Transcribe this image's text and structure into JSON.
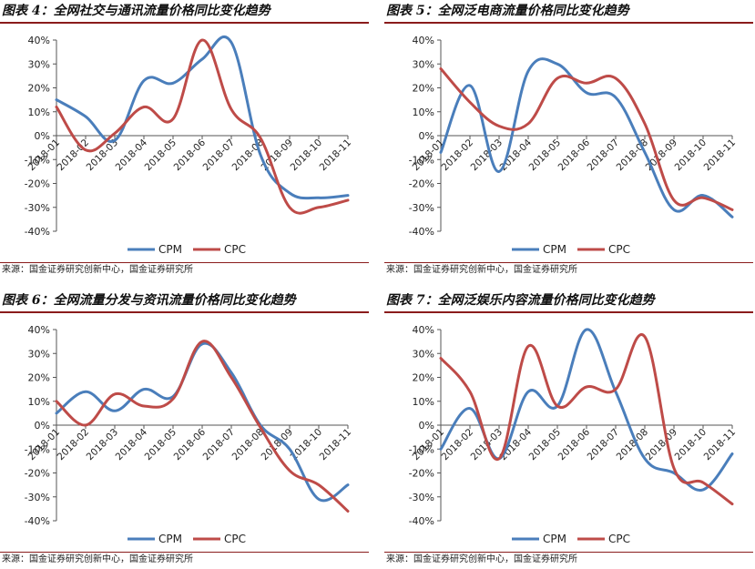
{
  "chart_data": [
    {
      "type": "line",
      "title": "图表 4：全网社交与通讯流量价格同比变化趋势",
      "source": "来源：国金证券研究创新中心，国金证券研究所",
      "categories": [
        "2018-01",
        "2018-02",
        "2018-03",
        "2018-04",
        "2018-05",
        "2018-06",
        "2018-07",
        "2018-08",
        "2018-09",
        "2018-10",
        "2018-11"
      ],
      "series": [
        {
          "name": "CPM",
          "color": "#4a7ebb",
          "values": [
            15,
            8,
            -2,
            23,
            22,
            32,
            39,
            -8,
            -24,
            -26,
            -25
          ]
        },
        {
          "name": "CPC",
          "color": "#be4b48",
          "values": [
            12,
            -6,
            1,
            12,
            7,
            40,
            11,
            -1,
            -30,
            -30,
            -27
          ]
        }
      ],
      "ylim": [
        -40,
        40
      ],
      "yticks": [
        "40%",
        "30%",
        "20%",
        "10%",
        "0%",
        "-10%",
        "-20%",
        "-30%",
        "-40%"
      ]
    },
    {
      "type": "line",
      "title": "图表 5：全网泛电商流量价格同比变化趋势",
      "source": "来源：国金证券研究创新中心，国金证券研究所",
      "categories": [
        "2018-01",
        "2018-02",
        "2018-03",
        "2018-04",
        "2018-05",
        "2018-06",
        "2018-07",
        "2018-08",
        "2018-09",
        "2018-10",
        "2018-11"
      ],
      "series": [
        {
          "name": "CPM",
          "color": "#4a7ebb",
          "values": [
            -7,
            21,
            -15,
            27,
            30,
            18,
            16,
            -7,
            -31,
            -25,
            -34
          ]
        },
        {
          "name": "CPC",
          "color": "#be4b48",
          "values": [
            28,
            14,
            4,
            5,
            24,
            22,
            24,
            5,
            -27,
            -26,
            -31
          ]
        }
      ],
      "ylim": [
        -40,
        40
      ],
      "yticks": [
        "40%",
        "30%",
        "20%",
        "10%",
        "0%",
        "-10%",
        "-20%",
        "-30%",
        "-40%"
      ]
    },
    {
      "type": "line",
      "title": "图表 6：全网流量分发与资讯流量价格同比变化趋势",
      "source": "来源：国金证券研究创新中心，国金证券研究所",
      "categories": [
        "2018-01",
        "2018-02",
        "2018-03",
        "2018-04",
        "2018-05",
        "2018-06",
        "2018-07",
        "2018-08",
        "2018-09",
        "2018-10",
        "2018-11"
      ],
      "series": [
        {
          "name": "CPM",
          "color": "#4a7ebb",
          "values": [
            5,
            14,
            6,
            15,
            12,
            34,
            22,
            0,
            -10,
            -31,
            -25
          ]
        },
        {
          "name": "CPC",
          "color": "#be4b48",
          "values": [
            10,
            0,
            13,
            8,
            11,
            35,
            20,
            -1,
            -19,
            -25,
            -36
          ]
        }
      ],
      "ylim": [
        -40,
        40
      ],
      "yticks": [
        "40%",
        "30%",
        "20%",
        "10%",
        "0%",
        "-10%",
        "-20%",
        "-30%",
        "-40%"
      ]
    },
    {
      "type": "line",
      "title": "图表 7：全网泛娱乐内容流量价格同比变化趋势",
      "source": "来源：国金证券研究创新中心，国金证券研究所",
      "categories": [
        "2018-01",
        "2018-02",
        "2018-03",
        "2018-04",
        "2018-05",
        "2018-06",
        "2018-07",
        "2018-08",
        "2018-09",
        "2018-10",
        "2018-11"
      ],
      "series": [
        {
          "name": "CPM",
          "color": "#4a7ebb",
          "values": [
            -10,
            7,
            -14,
            14,
            8,
            40,
            14,
            -14,
            -20,
            -27,
            -12
          ]
        },
        {
          "name": "CPC",
          "color": "#be4b48",
          "values": [
            28,
            14,
            -14,
            33,
            8,
            16,
            15,
            37,
            -18,
            -24,
            -33
          ]
        }
      ],
      "ylim": [
        -40,
        40
      ],
      "yticks": [
        "40%",
        "30%",
        "20%",
        "10%",
        "0%",
        "-10%",
        "-20%",
        "-30%",
        "-40%"
      ]
    }
  ]
}
